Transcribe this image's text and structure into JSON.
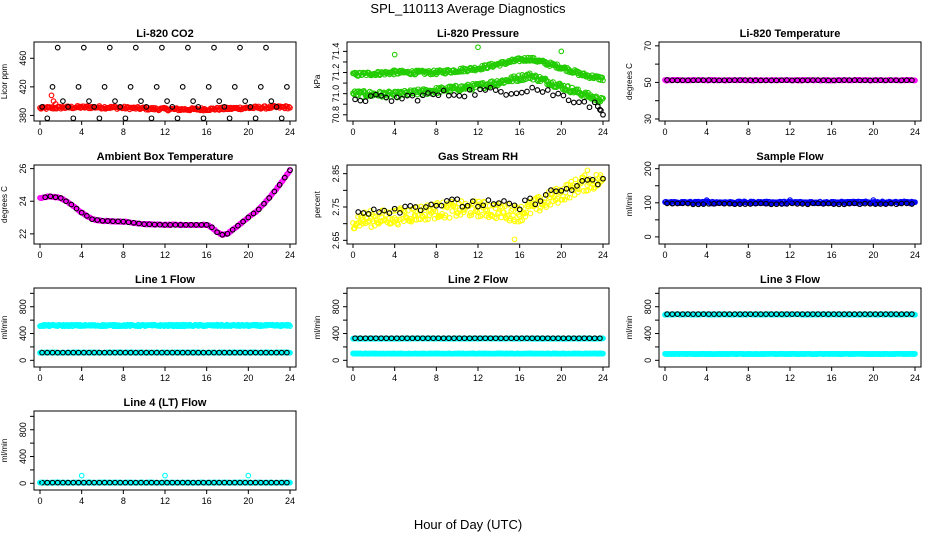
{
  "figure": {
    "title": "SPL_110113  Average Diagnostics",
    "xlabel": "Hour of Day (UTC)"
  },
  "colors": {
    "black": "#000000",
    "red": "#ff0000",
    "green": "#22cc00",
    "magenta": "#ff00ff",
    "yellow": "#ffff00",
    "blue": "#0000ff",
    "cyan": "#00ffff"
  },
  "chart_data": [
    {
      "type": "scatter",
      "title": "Li-820 CO2",
      "ylabel": "Licor ppm",
      "xlim": [
        0,
        24
      ],
      "ylim": [
        375,
        480
      ],
      "xticks": [
        0,
        4,
        8,
        12,
        16,
        20,
        24
      ],
      "yticks": [
        380,
        420,
        460
      ],
      "series": [
        {
          "color": "red",
          "pattern": "flat",
          "x_start": 0,
          "x_end": 24,
          "step": 0.1,
          "base": 390,
          "amp": 1.5,
          "noise": 2,
          "points": [
            [
              1.1,
              408
            ],
            [
              1.3,
              400
            ],
            [
              1.5,
              396
            ],
            [
              1.8,
              392
            ]
          ]
        },
        {
          "color": "black",
          "pattern": "multi",
          "x_start": 0.2,
          "x_end": 24,
          "step": 0.5,
          "levels": [
            392,
            376,
            420,
            475,
            400
          ]
        }
      ]
    },
    {
      "type": "scatter",
      "title": "Li-820 Pressure",
      "ylabel": "kPa",
      "xlim": [
        0,
        24
      ],
      "ylim": [
        70.76,
        71.47
      ],
      "xticks": [
        0,
        4,
        8,
        12,
        16,
        20,
        24
      ],
      "yticks": [
        70.8,
        70.9,
        71.0,
        71.1,
        71.2,
        71.3,
        71.4
      ],
      "ytick_labels": [
        "70.8",
        "",
        "71.0",
        "",
        "71.2",
        "",
        "71.4"
      ],
      "series": [
        {
          "color": "green",
          "pattern": "keys",
          "x_start": 0,
          "x_end": 24,
          "step": 0.08,
          "keys": [
            [
              0,
              71.18
            ],
            [
              4,
              71.2
            ],
            [
              8,
              71.2
            ],
            [
              12,
              71.24
            ],
            [
              16,
              71.32
            ],
            [
              17,
              71.33
            ],
            [
              20,
              71.25
            ],
            [
              22,
              71.18
            ],
            [
              24,
              71.14
            ]
          ],
          "noise": 0.02
        },
        {
          "color": "green",
          "pattern": "keys",
          "x_start": 0,
          "x_end": 24,
          "step": 0.08,
          "keys": [
            [
              0,
              71.0
            ],
            [
              4,
              70.99
            ],
            [
              8,
              71.03
            ],
            [
              12,
              71.07
            ],
            [
              16,
              71.15
            ],
            [
              17,
              71.17
            ],
            [
              20,
              71.07
            ],
            [
              22,
              71.0
            ],
            [
              24,
              70.93
            ]
          ],
          "noise": 0.03
        },
        {
          "color": "black",
          "pattern": "keys",
          "x_start": 0.2,
          "x_end": 24,
          "step": 0.5,
          "keys": [
            [
              0,
              70.96
            ],
            [
              4,
              70.95
            ],
            [
              8,
              70.99
            ],
            [
              12,
              71.02
            ],
            [
              16,
              71.03
            ],
            [
              17,
              71.06
            ],
            [
              20,
              70.98
            ],
            [
              22,
              70.93
            ],
            [
              24,
              70.86
            ]
          ],
          "noise": 0.04
        },
        {
          "color": "green",
          "pattern": "points",
          "points": [
            [
              4,
              71.37
            ],
            [
              12,
              71.44
            ],
            [
              20,
              71.4
            ],
            [
              3.9,
              71.22
            ]
          ]
        },
        {
          "color": "black",
          "pattern": "points",
          "points": [
            [
              24,
              70.8
            ],
            [
              23.8,
              70.84
            ],
            [
              23.5,
              70.88
            ]
          ]
        }
      ]
    },
    {
      "type": "scatter",
      "title": "Li-820 Temperature",
      "ylabel": "degrees C",
      "xlim": [
        0,
        24
      ],
      "ylim": [
        30,
        71
      ],
      "xticks": [
        0,
        4,
        8,
        12,
        16,
        20,
        24
      ],
      "yticks": [
        30,
        40,
        50,
        60,
        70
      ],
      "ytick_labels": [
        "30",
        "",
        "50",
        "",
        "70"
      ],
      "series": [
        {
          "color": "magenta",
          "pattern": "flat",
          "x_start": 0,
          "x_end": 24,
          "step": 0.1,
          "base": 51.2,
          "amp": 0,
          "noise": 0.2
        },
        {
          "color": "black",
          "pattern": "flat",
          "x_start": 0.2,
          "x_end": 24,
          "step": 0.5,
          "base": 51.2,
          "amp": 0,
          "noise": 0.1
        }
      ]
    },
    {
      "type": "scatter",
      "title": "Ambient Box Temperature",
      "ylabel": "degrees C",
      "xlim": [
        0,
        24
      ],
      "ylim": [
        21.5,
        26.1
      ],
      "xticks": [
        0,
        4,
        8,
        12,
        16,
        20,
        24
      ],
      "yticks": [
        22,
        24,
        26
      ],
      "series": [
        {
          "color": "magenta",
          "pattern": "keys",
          "x_start": 0,
          "x_end": 24,
          "step": 0.1,
          "keys": [
            [
              0,
              24.2
            ],
            [
              1,
              24.3
            ],
            [
              2,
              24.2
            ],
            [
              3,
              23.8
            ],
            [
              4,
              23.3
            ],
            [
              5,
              22.9
            ],
            [
              6,
              22.8
            ],
            [
              8,
              22.75
            ],
            [
              10,
              22.6
            ],
            [
              12,
              22.55
            ],
            [
              14,
              22.55
            ],
            [
              16,
              22.55
            ],
            [
              16.5,
              22.4
            ],
            [
              17,
              22.1
            ],
            [
              17.5,
              21.95
            ],
            [
              18,
              22.0
            ],
            [
              19,
              22.5
            ],
            [
              20,
              23.0
            ],
            [
              21,
              23.5
            ],
            [
              22,
              24.2
            ],
            [
              23,
              25.0
            ],
            [
              24,
              25.9
            ]
          ],
          "noise": 0.03
        },
        {
          "color": "black",
          "pattern": "keys",
          "x_start": 0.5,
          "x_end": 24,
          "step": 0.5,
          "keys": [
            [
              0,
              24.2
            ],
            [
              1,
              24.3
            ],
            [
              2,
              24.2
            ],
            [
              3,
              23.8
            ],
            [
              4,
              23.3
            ],
            [
              5,
              22.9
            ],
            [
              6,
              22.8
            ],
            [
              8,
              22.75
            ],
            [
              10,
              22.6
            ],
            [
              12,
              22.55
            ],
            [
              14,
              22.55
            ],
            [
              16,
              22.55
            ],
            [
              16.5,
              22.4
            ],
            [
              17,
              22.1
            ],
            [
              17.5,
              21.95
            ],
            [
              18,
              22.0
            ],
            [
              19,
              22.5
            ],
            [
              20,
              23.0
            ],
            [
              21,
              23.5
            ],
            [
              22,
              24.2
            ],
            [
              23,
              25.0
            ],
            [
              24,
              25.9
            ]
          ],
          "noise": 0.0
        }
      ]
    },
    {
      "type": "scatter",
      "title": "Gas Stream RH",
      "ylabel": "percent",
      "xlim": [
        0,
        24
      ],
      "ylim": [
        2.645,
        2.87
      ],
      "xticks": [
        0,
        4,
        8,
        12,
        16,
        20,
        24
      ],
      "yticks": [
        2.65,
        2.7,
        2.75,
        2.8,
        2.85
      ],
      "ytick_labels": [
        "2.65",
        "",
        "2.75",
        "",
        "2.85"
      ],
      "series": [
        {
          "color": "yellow",
          "pattern": "keys",
          "x_start": 0,
          "x_end": 24,
          "step": 0.08,
          "keys": [
            [
              0,
              2.71
            ],
            [
              4,
              2.72
            ],
            [
              8,
              2.74
            ],
            [
              12,
              2.745
            ],
            [
              16,
              2.73
            ],
            [
              18,
              2.76
            ],
            [
              20,
              2.79
            ],
            [
              22,
              2.82
            ],
            [
              24,
              2.83
            ]
          ],
          "noise": 0.025
        },
        {
          "color": "black",
          "pattern": "keys",
          "x_start": 0.5,
          "x_end": 24,
          "step": 0.5,
          "keys": [
            [
              0,
              2.74
            ],
            [
              4,
              2.745
            ],
            [
              8,
              2.76
            ],
            [
              12,
              2.76
            ],
            [
              16,
              2.75
            ],
            [
              18,
              2.78
            ],
            [
              20,
              2.8
            ],
            [
              22,
              2.815
            ],
            [
              24,
              2.83
            ]
          ],
          "noise": 0.015
        },
        {
          "color": "yellow",
          "pattern": "points",
          "points": [
            [
              15.5,
              2.653
            ],
            [
              22.5,
              2.86
            ]
          ]
        }
      ]
    },
    {
      "type": "scatter",
      "title": "Sample Flow",
      "ylabel": "ml/min",
      "xlim": [
        0,
        24
      ],
      "ylim": [
        -15,
        205
      ],
      "xticks": [
        0,
        4,
        8,
        12,
        16,
        20,
        24
      ],
      "yticks": [
        0,
        50,
        100,
        150,
        200
      ],
      "ytick_labels": [
        "0",
        "",
        "100",
        "",
        "200"
      ],
      "series": [
        {
          "color": "blue",
          "pattern": "flat",
          "x_start": 0,
          "x_end": 24,
          "step": 0.08,
          "base": 101,
          "amp": 0,
          "noise": 3
        },
        {
          "color": "black",
          "pattern": "flat",
          "x_start": 0.2,
          "x_end": 24,
          "step": 0.5,
          "base": 97,
          "amp": 0,
          "noise": 1.5
        },
        {
          "color": "blue",
          "pattern": "points",
          "points": [
            [
              4,
              108
            ],
            [
              12,
              108
            ],
            [
              20,
              108
            ]
          ]
        }
      ]
    },
    {
      "type": "scatter",
      "title": "Line 1 Flow",
      "ylabel": "ml/min",
      "xlim": [
        0,
        24
      ],
      "ylim": [
        -70,
        1050
      ],
      "xticks": [
        0,
        4,
        8,
        12,
        16,
        20,
        24
      ],
      "yticks": [
        0,
        200,
        400,
        600,
        800,
        1000
      ],
      "ytick_labels": [
        "0",
        "",
        "400",
        "",
        "800",
        ""
      ],
      "series": [
        {
          "color": "cyan",
          "pattern": "flat",
          "x_start": 0,
          "x_end": 24,
          "step": 0.08,
          "base": 520,
          "amp": 0,
          "noise": 12
        },
        {
          "color": "cyan",
          "pattern": "flat",
          "x_start": 0,
          "x_end": 24,
          "step": 0.08,
          "base": 115,
          "amp": 0,
          "noise": 3
        },
        {
          "color": "black",
          "pattern": "flat",
          "x_start": 0.2,
          "x_end": 24,
          "step": 0.5,
          "base": 115,
          "amp": 0,
          "noise": 0
        }
      ]
    },
    {
      "type": "scatter",
      "title": "Line 2 Flow",
      "ylabel": "ml/min",
      "xlim": [
        0,
        24
      ],
      "ylim": [
        -70,
        1050
      ],
      "xticks": [
        0,
        4,
        8,
        12,
        16,
        20,
        24
      ],
      "yticks": [
        0,
        200,
        400,
        600,
        800,
        1000
      ],
      "ytick_labels": [
        "0",
        "",
        "400",
        "",
        "800",
        ""
      ],
      "series": [
        {
          "color": "cyan",
          "pattern": "flat",
          "x_start": 0,
          "x_end": 24,
          "step": 0.08,
          "base": 325,
          "amp": 0,
          "noise": 5
        },
        {
          "color": "cyan",
          "pattern": "flat",
          "x_start": 0,
          "x_end": 24,
          "step": 0.08,
          "base": 100,
          "amp": 0,
          "noise": 3
        },
        {
          "color": "black",
          "pattern": "flat",
          "x_start": 0.2,
          "x_end": 24,
          "step": 0.5,
          "base": 330,
          "amp": 0,
          "noise": 0
        }
      ]
    },
    {
      "type": "scatter",
      "title": "Line 3 Flow",
      "ylabel": "ml/min",
      "xlim": [
        0,
        24
      ],
      "ylim": [
        -70,
        1050
      ],
      "xticks": [
        0,
        4,
        8,
        12,
        16,
        20,
        24
      ],
      "yticks": [
        0,
        200,
        400,
        600,
        800,
        1000
      ],
      "ytick_labels": [
        "0",
        "",
        "400",
        "",
        "800",
        ""
      ],
      "series": [
        {
          "color": "cyan",
          "pattern": "flat",
          "x_start": 0,
          "x_end": 24,
          "step": 0.08,
          "base": 685,
          "amp": 0,
          "noise": 5
        },
        {
          "color": "cyan",
          "pattern": "flat",
          "x_start": 0,
          "x_end": 24,
          "step": 0.08,
          "base": 95,
          "amp": 0,
          "noise": 3
        },
        {
          "color": "black",
          "pattern": "flat",
          "x_start": 0.2,
          "x_end": 24,
          "step": 0.5,
          "base": 690,
          "amp": 0,
          "noise": 0
        }
      ]
    },
    {
      "type": "scatter",
      "title": "Line 4 (LT) Flow",
      "ylabel": "ml/min",
      "xlim": [
        0,
        24
      ],
      "ylim": [
        -70,
        1050
      ],
      "xticks": [
        0,
        4,
        8,
        12,
        16,
        20,
        24
      ],
      "yticks": [
        0,
        200,
        400,
        600,
        800,
        1000
      ],
      "ytick_labels": [
        "0",
        "",
        "400",
        "",
        "800",
        ""
      ],
      "series": [
        {
          "color": "cyan",
          "pattern": "flat",
          "x_start": 0,
          "x_end": 24,
          "step": 0.08,
          "base": 10,
          "amp": 0,
          "noise": 3
        },
        {
          "color": "black",
          "pattern": "flat",
          "x_start": 0.2,
          "x_end": 24,
          "step": 0.5,
          "base": 10,
          "amp": 0,
          "noise": 0
        },
        {
          "color": "cyan",
          "pattern": "points",
          "points": [
            [
              4,
              115
            ],
            [
              12,
              115
            ],
            [
              20,
              115
            ],
            [
              0,
              10
            ]
          ]
        }
      ]
    }
  ]
}
